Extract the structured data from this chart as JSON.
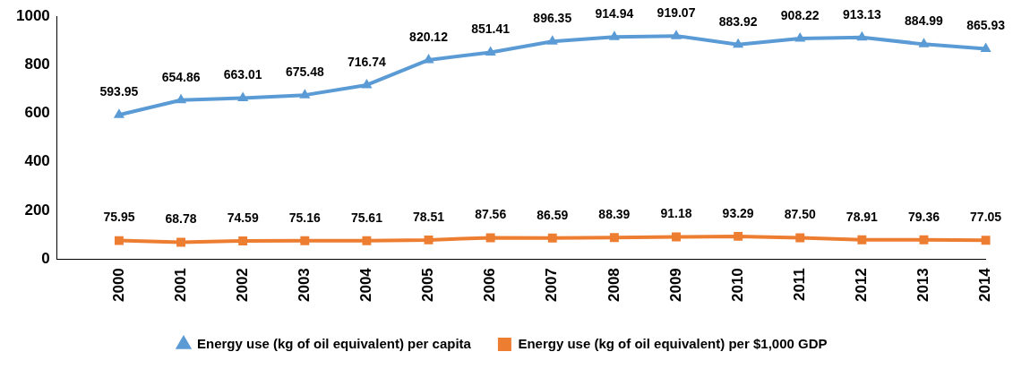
{
  "chart_data": {
    "type": "line",
    "categories": [
      null,
      "2000",
      "2001",
      "2002",
      "2003",
      "2004",
      "2005",
      "2006",
      "2007",
      "2008",
      "2009",
      "2010",
      "2011",
      "2012",
      "2013",
      "2014"
    ],
    "series": [
      {
        "name": "Energy use (kg of oil equivalent) per capita",
        "color": "#5b9bd5",
        "marker": "triangle",
        "values": [
          null,
          593.95,
          654.86,
          663.01,
          675.48,
          716.74,
          820.12,
          851.41,
          896.35,
          914.94,
          919.07,
          883.92,
          908.22,
          913.13,
          884.99,
          865.93
        ],
        "value_labels": [
          null,
          "593.95",
          "654.86",
          "663.01",
          "675.48",
          "716.74",
          "820.12",
          "851.41",
          "896.35",
          "914.94",
          "919.07",
          "883.92",
          "908.22",
          "913.13",
          "884.99",
          "865.93"
        ]
      },
      {
        "name": "Energy use (kg of oil equivalent) per $1,000 GDP",
        "color": "#ed7d31",
        "marker": "square",
        "values": [
          null,
          75.95,
          68.78,
          74.59,
          75.16,
          75.61,
          78.51,
          87.56,
          86.59,
          88.39,
          91.18,
          93.29,
          87.5,
          78.91,
          79.36,
          77.05
        ],
        "value_labels": [
          null,
          "75.95",
          "68.78",
          "74.59",
          "75.16",
          "75.61",
          "78.51",
          "87.56",
          "86.59",
          "88.39",
          "91.18",
          "93.29",
          "87.50",
          "78.91",
          "79.36",
          "77.05"
        ]
      }
    ],
    "ylim": [
      0,
      1000
    ],
    "yticks": [
      0,
      200,
      400,
      600,
      800,
      1000
    ],
    "grid": false,
    "legend": "bottom"
  }
}
